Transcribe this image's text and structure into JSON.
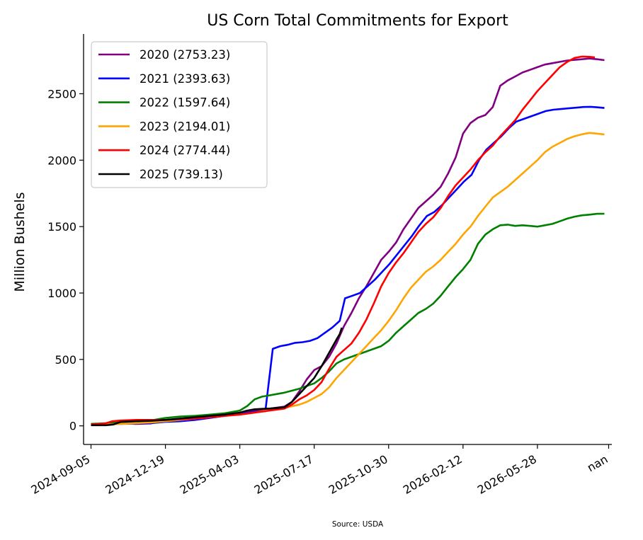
{
  "chart_data": {
    "type": "line",
    "title": "US Corn Total Commitments for Export",
    "xlabel": "",
    "ylabel": "Million Bushels",
    "source": "Source: USDA",
    "xlim": [
      -7,
      490
    ],
    "ylim": [
      -140,
      2950
    ],
    "x_ticks": [
      {
        "pos": 0,
        "label": "2024-09-05"
      },
      {
        "pos": 70,
        "label": "2024-12-19"
      },
      {
        "pos": 140,
        "label": "2025-04-03"
      },
      {
        "pos": 210,
        "label": "2025-07-17"
      },
      {
        "pos": 280,
        "label": "2025-10-30"
      },
      {
        "pos": 350,
        "label": "2026-02-12"
      },
      {
        "pos": 420,
        "label": "2026-05-28"
      },
      {
        "pos": 487,
        "label": "nan"
      }
    ],
    "y_ticks": [
      0,
      500,
      1000,
      1500,
      2000,
      2500
    ],
    "grid": false,
    "legend_position": "top-left",
    "series": [
      {
        "name": "2020 (2753.23)",
        "color": "#800080",
        "points": [
          [
            0,
            12
          ],
          [
            14,
            15
          ],
          [
            28,
            20
          ],
          [
            42,
            15
          ],
          [
            56,
            18
          ],
          [
            63,
            30
          ],
          [
            70,
            35
          ],
          [
            84,
            40
          ],
          [
            98,
            55
          ],
          [
            112,
            65
          ],
          [
            126,
            80
          ],
          [
            140,
            95
          ],
          [
            154,
            115
          ],
          [
            168,
            130
          ],
          [
            182,
            145
          ],
          [
            189,
            180
          ],
          [
            196,
            260
          ],
          [
            203,
            350
          ],
          [
            210,
            420
          ],
          [
            217,
            450
          ],
          [
            224,
            520
          ],
          [
            231,
            620
          ],
          [
            238,
            750
          ],
          [
            245,
            850
          ],
          [
            252,
            960
          ],
          [
            259,
            1050
          ],
          [
            266,
            1150
          ],
          [
            273,
            1250
          ],
          [
            280,
            1310
          ],
          [
            287,
            1380
          ],
          [
            294,
            1480
          ],
          [
            301,
            1560
          ],
          [
            308,
            1640
          ],
          [
            315,
            1690
          ],
          [
            322,
            1740
          ],
          [
            329,
            1800
          ],
          [
            336,
            1900
          ],
          [
            343,
            2020
          ],
          [
            350,
            2200
          ],
          [
            357,
            2280
          ],
          [
            364,
            2320
          ],
          [
            371,
            2340
          ],
          [
            378,
            2400
          ],
          [
            385,
            2560
          ],
          [
            392,
            2600
          ],
          [
            399,
            2630
          ],
          [
            406,
            2660
          ],
          [
            413,
            2680
          ],
          [
            420,
            2700
          ],
          [
            427,
            2720
          ],
          [
            434,
            2730
          ],
          [
            441,
            2740
          ],
          [
            448,
            2750
          ],
          [
            455,
            2755
          ],
          [
            462,
            2760
          ],
          [
            469,
            2765
          ],
          [
            476,
            2760
          ],
          [
            483,
            2753
          ]
        ]
      },
      {
        "name": "2021 (2393.63)",
        "color": "#0000ff",
        "points": [
          [
            0,
            10
          ],
          [
            14,
            12
          ],
          [
            28,
            15
          ],
          [
            56,
            20
          ],
          [
            70,
            30
          ],
          [
            84,
            35
          ],
          [
            98,
            45
          ],
          [
            112,
            60
          ],
          [
            126,
            75
          ],
          [
            140,
            90
          ],
          [
            154,
            105
          ],
          [
            164,
            110
          ],
          [
            171,
            580
          ],
          [
            178,
            600
          ],
          [
            185,
            610
          ],
          [
            192,
            625
          ],
          [
            199,
            630
          ],
          [
            206,
            640
          ],
          [
            213,
            660
          ],
          [
            220,
            700
          ],
          [
            227,
            740
          ],
          [
            234,
            790
          ],
          [
            239,
            960
          ],
          [
            246,
            980
          ],
          [
            253,
            1000
          ],
          [
            260,
            1050
          ],
          [
            267,
            1100
          ],
          [
            274,
            1160
          ],
          [
            281,
            1220
          ],
          [
            288,
            1290
          ],
          [
            295,
            1360
          ],
          [
            302,
            1430
          ],
          [
            309,
            1510
          ],
          [
            316,
            1580
          ],
          [
            323,
            1610
          ],
          [
            330,
            1660
          ],
          [
            337,
            1720
          ],
          [
            344,
            1780
          ],
          [
            351,
            1840
          ],
          [
            358,
            1890
          ],
          [
            365,
            2000
          ],
          [
            372,
            2080
          ],
          [
            379,
            2130
          ],
          [
            386,
            2180
          ],
          [
            393,
            2240
          ],
          [
            400,
            2290
          ],
          [
            407,
            2310
          ],
          [
            414,
            2330
          ],
          [
            421,
            2350
          ],
          [
            428,
            2370
          ],
          [
            435,
            2380
          ],
          [
            442,
            2385
          ],
          [
            449,
            2390
          ],
          [
            456,
            2395
          ],
          [
            463,
            2400
          ],
          [
            470,
            2402
          ],
          [
            476,
            2398
          ],
          [
            483,
            2393
          ]
        ]
      },
      {
        "name": "2022 (1597.64)",
        "color": "#008000",
        "points": [
          [
            0,
            15
          ],
          [
            14,
            20
          ],
          [
            28,
            28
          ],
          [
            56,
            40
          ],
          [
            70,
            60
          ],
          [
            84,
            70
          ],
          [
            98,
            75
          ],
          [
            112,
            85
          ],
          [
            126,
            95
          ],
          [
            140,
            115
          ],
          [
            147,
            150
          ],
          [
            154,
            200
          ],
          [
            161,
            220
          ],
          [
            168,
            230
          ],
          [
            175,
            240
          ],
          [
            182,
            250
          ],
          [
            189,
            265
          ],
          [
            196,
            280
          ],
          [
            203,
            300
          ],
          [
            210,
            320
          ],
          [
            217,
            360
          ],
          [
            224,
            410
          ],
          [
            231,
            470
          ],
          [
            238,
            500
          ],
          [
            245,
            520
          ],
          [
            252,
            540
          ],
          [
            259,
            560
          ],
          [
            266,
            580
          ],
          [
            273,
            600
          ],
          [
            280,
            640
          ],
          [
            287,
            700
          ],
          [
            294,
            750
          ],
          [
            301,
            800
          ],
          [
            308,
            850
          ],
          [
            315,
            880
          ],
          [
            322,
            920
          ],
          [
            329,
            980
          ],
          [
            336,
            1050
          ],
          [
            343,
            1120
          ],
          [
            350,
            1180
          ],
          [
            357,
            1250
          ],
          [
            364,
            1370
          ],
          [
            371,
            1440
          ],
          [
            378,
            1480
          ],
          [
            385,
            1510
          ],
          [
            392,
            1515
          ],
          [
            399,
            1505
          ],
          [
            406,
            1510
          ],
          [
            413,
            1505
          ],
          [
            420,
            1500
          ],
          [
            427,
            1510
          ],
          [
            434,
            1520
          ],
          [
            441,
            1540
          ],
          [
            448,
            1560
          ],
          [
            455,
            1575
          ],
          [
            462,
            1585
          ],
          [
            469,
            1590
          ],
          [
            476,
            1596
          ],
          [
            483,
            1597
          ]
        ]
      },
      {
        "name": "2023 (2194.01)",
        "color": "#ffa500",
        "points": [
          [
            0,
            8
          ],
          [
            14,
            10
          ],
          [
            28,
            15
          ],
          [
            56,
            25
          ],
          [
            70,
            35
          ],
          [
            84,
            45
          ],
          [
            98,
            55
          ],
          [
            112,
            65
          ],
          [
            126,
            75
          ],
          [
            140,
            85
          ],
          [
            154,
            100
          ],
          [
            168,
            120
          ],
          [
            182,
            135
          ],
          [
            196,
            160
          ],
          [
            203,
            180
          ],
          [
            210,
            210
          ],
          [
            217,
            240
          ],
          [
            224,
            290
          ],
          [
            231,
            360
          ],
          [
            238,
            420
          ],
          [
            245,
            480
          ],
          [
            252,
            540
          ],
          [
            259,
            600
          ],
          [
            266,
            660
          ],
          [
            273,
            720
          ],
          [
            280,
            790
          ],
          [
            287,
            870
          ],
          [
            294,
            960
          ],
          [
            301,
            1040
          ],
          [
            308,
            1100
          ],
          [
            315,
            1160
          ],
          [
            322,
            1200
          ],
          [
            329,
            1250
          ],
          [
            336,
            1310
          ],
          [
            343,
            1370
          ],
          [
            350,
            1440
          ],
          [
            357,
            1500
          ],
          [
            364,
            1580
          ],
          [
            371,
            1650
          ],
          [
            378,
            1720
          ],
          [
            385,
            1760
          ],
          [
            392,
            1800
          ],
          [
            399,
            1850
          ],
          [
            406,
            1900
          ],
          [
            413,
            1950
          ],
          [
            420,
            2000
          ],
          [
            427,
            2060
          ],
          [
            434,
            2100
          ],
          [
            441,
            2130
          ],
          [
            448,
            2160
          ],
          [
            455,
            2180
          ],
          [
            462,
            2195
          ],
          [
            469,
            2205
          ],
          [
            476,
            2200
          ],
          [
            483,
            2194
          ]
        ]
      },
      {
        "name": "2024 (2774.44)",
        "color": "#ff0000",
        "points": [
          [
            0,
            10
          ],
          [
            14,
            20
          ],
          [
            20,
            35
          ],
          [
            28,
            40
          ],
          [
            42,
            45
          ],
          [
            56,
            45
          ],
          [
            70,
            45
          ],
          [
            84,
            50
          ],
          [
            98,
            55
          ],
          [
            112,
            65
          ],
          [
            126,
            75
          ],
          [
            140,
            85
          ],
          [
            154,
            100
          ],
          [
            168,
            115
          ],
          [
            182,
            130
          ],
          [
            189,
            160
          ],
          [
            196,
            200
          ],
          [
            203,
            230
          ],
          [
            210,
            270
          ],
          [
            217,
            330
          ],
          [
            224,
            430
          ],
          [
            231,
            520
          ],
          [
            238,
            570
          ],
          [
            245,
            620
          ],
          [
            252,
            700
          ],
          [
            259,
            800
          ],
          [
            266,
            920
          ],
          [
            273,
            1050
          ],
          [
            280,
            1150
          ],
          [
            287,
            1230
          ],
          [
            294,
            1300
          ],
          [
            301,
            1380
          ],
          [
            308,
            1460
          ],
          [
            315,
            1520
          ],
          [
            322,
            1570
          ],
          [
            329,
            1640
          ],
          [
            336,
            1730
          ],
          [
            343,
            1810
          ],
          [
            350,
            1870
          ],
          [
            357,
            1930
          ],
          [
            364,
            2000
          ],
          [
            371,
            2060
          ],
          [
            378,
            2110
          ],
          [
            385,
            2180
          ],
          [
            392,
            2240
          ],
          [
            399,
            2300
          ],
          [
            406,
            2380
          ],
          [
            413,
            2450
          ],
          [
            420,
            2520
          ],
          [
            427,
            2580
          ],
          [
            434,
            2640
          ],
          [
            441,
            2700
          ],
          [
            448,
            2740
          ],
          [
            455,
            2770
          ],
          [
            462,
            2780
          ],
          [
            469,
            2778
          ],
          [
            474,
            2774
          ]
        ]
      },
      {
        "name": "2025 (739.13)",
        "color": "#000000",
        "points": [
          [
            0,
            5
          ],
          [
            14,
            5
          ],
          [
            21,
            10
          ],
          [
            28,
            30
          ],
          [
            42,
            35
          ],
          [
            56,
            38
          ],
          [
            70,
            45
          ],
          [
            84,
            55
          ],
          [
            98,
            65
          ],
          [
            112,
            75
          ],
          [
            126,
            85
          ],
          [
            140,
            100
          ],
          [
            147,
            115
          ],
          [
            154,
            125
          ],
          [
            161,
            128
          ],
          [
            168,
            130
          ],
          [
            175,
            135
          ],
          [
            182,
            140
          ],
          [
            189,
            180
          ],
          [
            196,
            240
          ],
          [
            203,
            300
          ],
          [
            210,
            360
          ],
          [
            217,
            450
          ],
          [
            224,
            550
          ],
          [
            231,
            650
          ],
          [
            234,
            690
          ],
          [
            236,
            739
          ]
        ]
      }
    ]
  }
}
